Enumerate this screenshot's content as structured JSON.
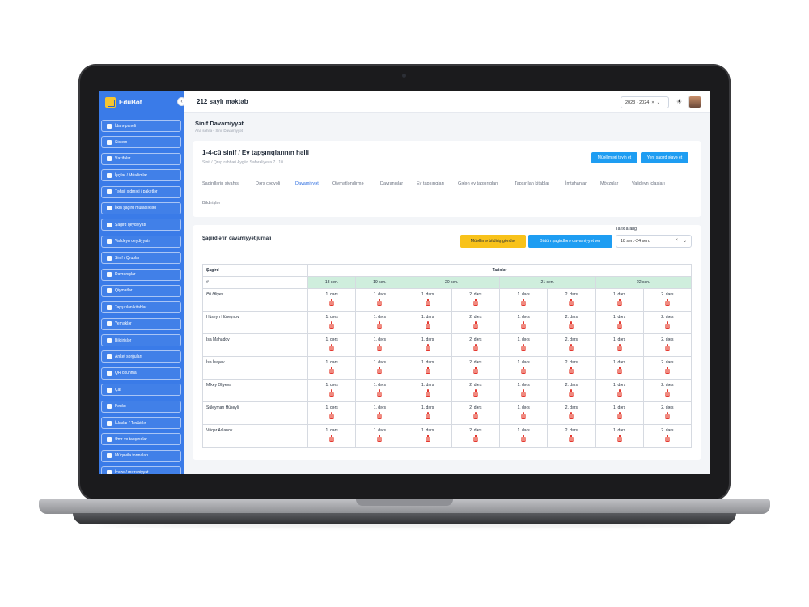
{
  "sidebar": {
    "brand": "EduBot",
    "items": [
      {
        "label": "İdarə paneli",
        "icon": "dashboard-icon"
      },
      {
        "label": "Sistem",
        "icon": "gear-icon"
      },
      {
        "label": "Vəzifələr",
        "icon": "briefcase-icon"
      },
      {
        "label": "İşçilər / Müəllimlər",
        "icon": "users-icon"
      },
      {
        "label": "Təhsil xidməti / paketlər",
        "icon": "package-icon"
      },
      {
        "label": "İlkin şagird müraciətləri",
        "icon": "inbox-icon"
      },
      {
        "label": "Şagird qeydiyyatı",
        "icon": "student-icon"
      },
      {
        "label": "Valideyn qeydiyyatı",
        "icon": "parent-icon"
      },
      {
        "label": "Sinif / Qruplar",
        "icon": "class-icon"
      },
      {
        "label": "Davranışlar",
        "icon": "behavior-icon"
      },
      {
        "label": "Qiymətlər",
        "icon": "grade-icon"
      },
      {
        "label": "Tapşırılan kitablar",
        "icon": "book-icon"
      },
      {
        "label": "Yeməklər",
        "icon": "food-icon"
      },
      {
        "label": "Bildirişlər",
        "icon": "bell-icon"
      },
      {
        "label": "Anket sorğuları",
        "icon": "survey-icon"
      },
      {
        "label": "QR oxunma",
        "icon": "qr-icon"
      },
      {
        "label": "Çat",
        "icon": "chat-icon"
      },
      {
        "label": "Fənlər",
        "icon": "subject-icon"
      },
      {
        "label": "İclaslar / Tədbirlər",
        "icon": "calendar-icon"
      },
      {
        "label": "Əmr və tapşırıqlar",
        "icon": "list-icon"
      },
      {
        "label": "Müqavilə formaları",
        "icon": "contract-icon"
      },
      {
        "label": "İcaze / məzuniyyət",
        "icon": "leave-icon"
      }
    ]
  },
  "topbar": {
    "school": "212 saylı məktəb",
    "year": "2023 - 2024",
    "year_clear": "×",
    "year_caret": "⌄",
    "theme_icon": "☀"
  },
  "page": {
    "title": "Sinif Davamiyyət",
    "breadcrumb": "Ana səhifə  •  Sinif Davamiyyət"
  },
  "class_card": {
    "title": "1-4-cü sinif / Ev tapşırıqlarının həlli",
    "subtitle": "Sinif / Qrup rəhbəri Aygün Səfərəliyeva    7 / 10",
    "btn_teacher": "Müəllimləri təyin et",
    "btn_add_student": "Yeni şagird əlavə et",
    "tabs": [
      "Şagirdlərin siyahısı",
      "Dərs cədvəli",
      "Davamiyyət",
      "Qiymətləndirmə",
      "Davranışlar",
      "Ev tapşırıqları",
      "Gələn ev tapşırıqları",
      "Tapşırılan kitablar",
      "İmtahanlar",
      "Mövzular",
      "Valideyn iclasları",
      "Bildirişlər"
    ],
    "active_tab": "Davamiyyət"
  },
  "journal": {
    "title": "Şagirdlərin davamiyyət jurnalı",
    "btn_notify": "Müəllimə bildiriş göndər",
    "btn_all_attend": "Bütün şagirdlərə davamiyyət ver",
    "range_label": "Tarix aralığı",
    "range_value": "18 sen.-24 sen.",
    "range_clear": "×",
    "range_caret": "⌄",
    "col_student": "Şagird",
    "col_dates": "Tarixlər",
    "col_number": "#",
    "dates": [
      {
        "label": "18 sen.",
        "lessons": [
          "1. dərs"
        ]
      },
      {
        "label": "19 sen.",
        "lessons": [
          "1. dərs"
        ]
      },
      {
        "label": "20 sen.",
        "lessons": [
          "1. dərs",
          "2. dərs"
        ]
      },
      {
        "label": "21 sen.",
        "lessons": [
          "1. dərs",
          "2. dərs"
        ]
      },
      {
        "label": "22 sen.",
        "lessons": [
          "1. dərs",
          "2. dərs"
        ]
      }
    ],
    "students": [
      "Əli Əliyev",
      "Hüseyn Hüseynov",
      "İsa Mahadov",
      "İsa İsayev",
      "Mikey Əliyeva",
      "Süleyman Hüseyli",
      "Vüqar Aslanov"
    ]
  }
}
